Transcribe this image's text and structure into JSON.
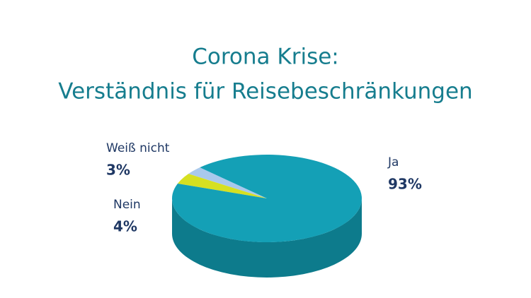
{
  "chart_data": {
    "type": "pie",
    "title": "Corona Krise:",
    "subtitle": "Verständnis für Reisebeschränkungen",
    "categories": [
      "Weiß nicht",
      "Nein",
      "Ja"
    ],
    "values": [
      3,
      4,
      93
    ],
    "value_labels": [
      "3%",
      "4%",
      "93%"
    ],
    "colors": [
      "#a9c9ec",
      "#d6e021",
      "#14a0b6"
    ],
    "side_colors": [
      "#7f9cbb",
      "#a9b11a",
      "#0d7b8c"
    ]
  }
}
